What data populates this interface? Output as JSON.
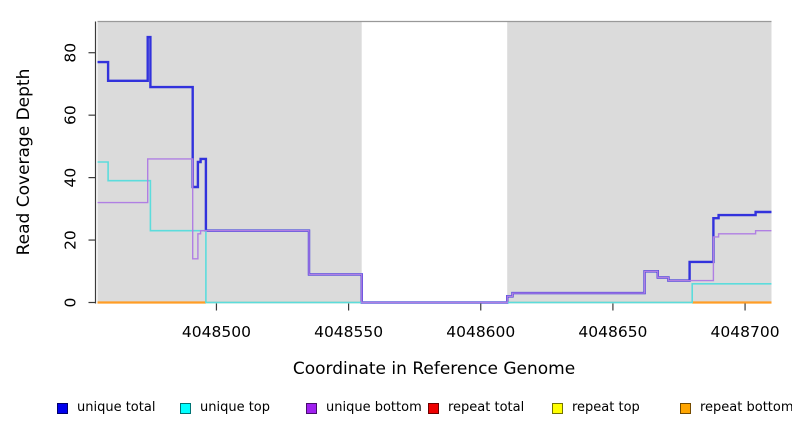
{
  "figure": {
    "background": "#ffffff"
  },
  "axis_color": "#3a3a3a",
  "box_color": "#999999",
  "text_color": "#000000",
  "chart_data": {
    "type": "line",
    "step_style": "step-after",
    "title": "",
    "xlabel": "Coordinate in Reference Genome",
    "ylabel": "Read Coverage Depth",
    "xlim": [
      4048455,
      4048710
    ],
    "ylim": [
      0,
      90
    ],
    "grid": false,
    "legend_position": "bottom",
    "x_ticks": [
      {
        "value": 4048500,
        "label": "4048500"
      },
      {
        "value": 4048550,
        "label": "4048550"
      },
      {
        "value": 4048600,
        "label": "4048600"
      },
      {
        "value": 4048650,
        "label": "4048650"
      },
      {
        "value": 4048700,
        "label": "4048700"
      }
    ],
    "y_ticks": [
      {
        "value": 0,
        "label": "0"
      },
      {
        "value": 20,
        "label": "20"
      },
      {
        "value": 40,
        "label": "40"
      },
      {
        "value": 60,
        "label": "60"
      },
      {
        "value": 80,
        "label": "80"
      }
    ],
    "background_regions": [
      {
        "name": "covered-region-left",
        "x0": 4048455,
        "x1": 4048555,
        "color": "#dbdbdb"
      },
      {
        "name": "gap-region",
        "x0": 4048555,
        "x1": 4048610,
        "color": "#ffffff"
      },
      {
        "name": "covered-region-right",
        "x0": 4048610,
        "x1": 4048710,
        "color": "#dbdbdb"
      }
    ],
    "zero_baseline": {
      "x0": 4048496,
      "x1": 4048680,
      "value": 0,
      "color": "#96c896"
    },
    "series": [
      {
        "name": "repeat total",
        "color": "#dd2222",
        "width": 1.3,
        "segments": [
          [
            [
              4048455,
              0
            ],
            [
              4048496,
              0
            ]
          ],
          [
            [
              4048680,
              0
            ],
            [
              4048710,
              0
            ]
          ]
        ]
      },
      {
        "name": "repeat top",
        "color": "#ebeb45",
        "width": 1.7,
        "segments": [
          [
            [
              4048455,
              0
            ],
            [
              4048496,
              0
            ]
          ],
          [
            [
              4048680,
              0
            ],
            [
              4048710,
              0
            ]
          ]
        ]
      },
      {
        "name": "repeat bottom",
        "color": "#ff9d26",
        "width": 2.2,
        "segments": [
          [
            [
              4048455,
              0
            ],
            [
              4048496,
              0
            ]
          ],
          [
            [
              4048680,
              0
            ],
            [
              4048710,
              0
            ]
          ]
        ]
      },
      {
        "name": "unique total",
        "color": "#3232dc",
        "width": 2.4,
        "segments": [
          [
            [
              4048455,
              77
            ],
            [
              4048459,
              71
            ],
            [
              4048474,
              85
            ],
            [
              4048475,
              69
            ],
            [
              4048491,
              37
            ],
            [
              4048493,
              45
            ],
            [
              4048494,
              46
            ],
            [
              4048496,
              23
            ],
            [
              4048535,
              9
            ],
            [
              4048555,
              0
            ],
            [
              4048610,
              2
            ],
            [
              4048612,
              3
            ],
            [
              4048662,
              10
            ],
            [
              4048667,
              8
            ],
            [
              4048671,
              7
            ],
            [
              4048679,
              13
            ],
            [
              4048688,
              27
            ],
            [
              4048690,
              28
            ],
            [
              4048704,
              29
            ],
            [
              4048710,
              29
            ]
          ]
        ]
      },
      {
        "name": "unique top",
        "color": "#5cdcdc",
        "width": 1.6,
        "segments": [
          [
            [
              4048455,
              45
            ],
            [
              4048459,
              39
            ],
            [
              4048475,
              23
            ],
            [
              4048496,
              0
            ],
            [
              4048680,
              6
            ],
            [
              4048710,
              6
            ]
          ]
        ]
      },
      {
        "name": "unique bottom",
        "color": "#b07fe3",
        "width": 1.4,
        "segments": [
          [
            [
              4048455,
              32
            ],
            [
              4048474,
              46
            ],
            [
              4048491,
              14
            ],
            [
              4048493,
              22
            ],
            [
              4048494,
              23
            ],
            [
              4048535,
              9
            ],
            [
              4048555,
              0
            ],
            [
              4048610,
              2
            ],
            [
              4048612,
              3
            ],
            [
              4048662,
              10
            ],
            [
              4048667,
              8
            ],
            [
              4048671,
              7
            ],
            [
              4048688,
              21
            ],
            [
              4048690,
              22
            ],
            [
              4048704,
              23
            ],
            [
              4048710,
              23
            ]
          ]
        ]
      }
    ]
  },
  "legend": {
    "items": [
      {
        "label": "unique total",
        "color": "#0000ee"
      },
      {
        "label": "unique top",
        "color": "#00ffff"
      },
      {
        "label": "unique bottom",
        "color": "#a020f0"
      },
      {
        "label": "repeat total",
        "color": "#ee0000"
      },
      {
        "label": "repeat top",
        "color": "#ffff00"
      },
      {
        "label": "repeat bottom",
        "color": "#ffa500"
      }
    ]
  }
}
